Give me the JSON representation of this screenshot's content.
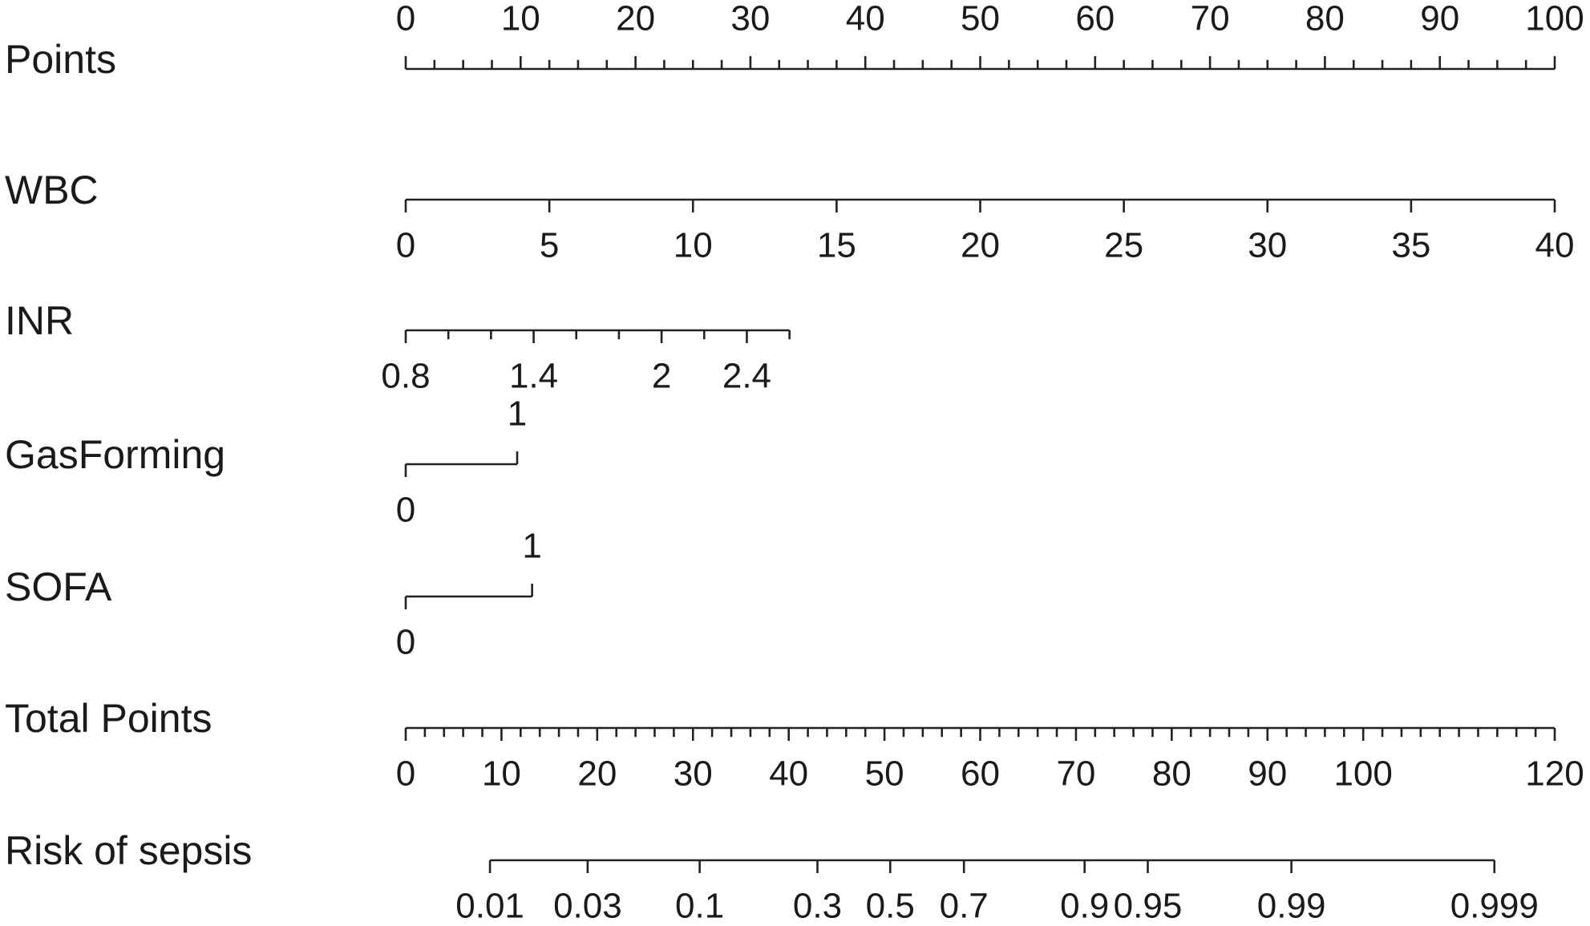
{
  "chart_data": {
    "type": "nomogram",
    "rows": [
      {
        "name": "Points",
        "scale": "points",
        "lim": [
          0,
          100
        ],
        "points_lim": [
          0,
          100
        ],
        "labels": "above",
        "ticks": [
          0,
          10,
          20,
          30,
          40,
          50,
          60,
          70,
          80,
          90,
          100
        ],
        "minor_ticks": [
          2.5,
          5,
          7.5,
          12.5,
          15,
          17.5,
          22.5,
          25,
          27.5,
          32.5,
          35,
          37.5,
          42.5,
          45,
          47.5,
          52.5,
          55,
          57.5,
          62.5,
          65,
          67.5,
          72.5,
          75,
          77.5,
          82.5,
          85,
          87.5,
          92.5,
          95,
          97.5
        ]
      },
      {
        "name": "WBC",
        "scale": "points",
        "lim": [
          0,
          40
        ],
        "points_lim": [
          0,
          100
        ],
        "labels": "below",
        "ticks": [
          0,
          5,
          10,
          15,
          20,
          25,
          30,
          35,
          40
        ],
        "minor_ticks": []
      },
      {
        "name": "INR",
        "scale": "points",
        "lim": [
          0.8,
          2.6
        ],
        "points_lim": [
          0,
          33.4
        ],
        "labels": "below",
        "ticks": [
          0.8,
          1.4,
          2,
          2.4
        ],
        "minor_ticks": [
          1,
          1.2,
          1.6,
          1.8,
          2.2,
          2.6
        ]
      },
      {
        "name": "GasForming",
        "scale": "points",
        "lim": [
          0,
          1
        ],
        "points_lim": [
          0,
          9.7
        ],
        "labels": [
          "below",
          "above"
        ],
        "ticks": [
          0,
          1
        ],
        "minor_ticks": []
      },
      {
        "name": "SOFA",
        "scale": "points",
        "lim": [
          0,
          1
        ],
        "points_lim": [
          0,
          11
        ],
        "labels": [
          "below",
          "above"
        ],
        "ticks": [
          0,
          1
        ],
        "minor_ticks": []
      },
      {
        "name": "Total Points",
        "scale": "total",
        "lim": [
          0,
          120
        ],
        "labels": "below",
        "ticks": [
          0,
          10,
          20,
          30,
          40,
          50,
          60,
          70,
          80,
          90,
          100,
          120
        ],
        "minor_ticks": [
          2,
          4,
          6,
          8,
          12,
          14,
          16,
          18,
          22,
          24,
          26,
          28,
          32,
          34,
          36,
          38,
          42,
          44,
          46,
          48,
          52,
          54,
          56,
          58,
          62,
          64,
          66,
          68,
          72,
          74,
          76,
          78,
          82,
          84,
          86,
          88,
          92,
          94,
          96,
          98,
          102,
          104,
          106,
          108,
          110,
          112,
          114,
          116,
          118
        ]
      },
      {
        "name": "Risk of sepsis",
        "scale": "total",
        "labels": "below",
        "ticks": [
          0.01,
          0.03,
          0.1,
          0.3,
          0.5,
          0.7,
          0.9,
          0.95,
          0.99,
          0.999
        ],
        "tick_points": [
          8.8,
          19,
          30.7,
          43,
          50.6,
          58.3,
          70.9,
          77.5,
          92.5,
          113.7
        ],
        "minor_ticks": []
      }
    ]
  }
}
